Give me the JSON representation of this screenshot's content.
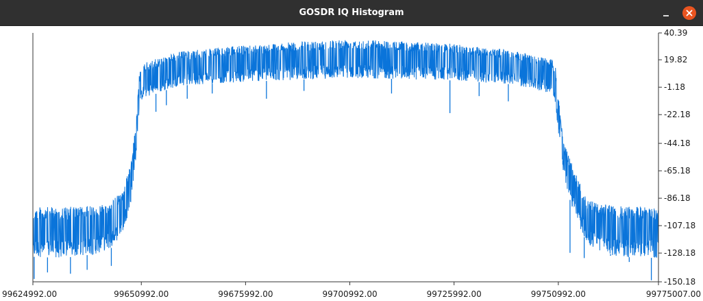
{
  "window": {
    "title": "GOSDR IQ Histogram",
    "minimize_icon": "minimize-icon",
    "close_icon": "close-icon",
    "close_color": "#e95420"
  },
  "chart_data": {
    "type": "line",
    "title": "",
    "xlabel": "",
    "ylabel": "",
    "series_color": "#0a74da",
    "xlim": [
      99624992,
      99775007
    ],
    "ylim": [
      -150.18,
      40.39
    ],
    "x_ticks": [
      "99624992.00",
      "99650992.00",
      "99675992.00",
      "99700992.00",
      "99725992.00",
      "99750992.00",
      "99775007.00"
    ],
    "x_tick_values": [
      99624992,
      99650992,
      99675992,
      99700992,
      99725992,
      99750992,
      99775007
    ],
    "y_ticks": [
      "40.39",
      "19.82",
      "-1.18",
      "-22.18",
      "-44.18",
      "-65.18",
      "-86.18",
      "-107.18",
      "-128.18",
      "-150.18"
    ],
    "y_tick_values": [
      40.39,
      19.82,
      -1.18,
      -22.18,
      -44.18,
      -65.18,
      -86.18,
      -107.18,
      -128.18,
      -150.18
    ],
    "envelope": {
      "x": [
        99624992,
        99632000,
        99640000,
        99644000,
        99646500,
        99648500,
        99649800,
        99650500,
        99651200,
        99660000,
        99675992,
        99700992,
        99725992,
        99740000,
        99749500,
        99750300,
        99751000,
        99752200,
        99754500,
        99758000,
        99764000,
        99775007
      ],
      "top": [
        -93,
        -93,
        -92,
        -88,
        -80,
        -60,
        -25,
        8,
        17,
        26,
        31,
        36,
        32,
        27,
        20,
        14,
        -8,
        -42,
        -62,
        -88,
        -92,
        -93
      ],
      "bottom": [
        -131,
        -132,
        -129,
        -124,
        -112,
        -92,
        -52,
        -20,
        -10,
        0,
        3,
        6,
        4,
        1,
        -6,
        -15,
        -35,
        -68,
        -96,
        -122,
        -131,
        -132
      ]
    },
    "spikes": [
      {
        "x": 99625300,
        "y": -148
      },
      {
        "x": 99628500,
        "y": -143
      },
      {
        "x": 99634000,
        "y": -144
      },
      {
        "x": 99638000,
        "y": -141
      },
      {
        "x": 99643800,
        "y": -138
      },
      {
        "x": 99654500,
        "y": -20
      },
      {
        "x": 99657000,
        "y": -15
      },
      {
        "x": 99662000,
        "y": -10
      },
      {
        "x": 99668000,
        "y": -6
      },
      {
        "x": 99681000,
        "y": -10
      },
      {
        "x": 99690000,
        "y": -4
      },
      {
        "x": 99711000,
        "y": -6
      },
      {
        "x": 99725000,
        "y": -21
      },
      {
        "x": 99732000,
        "y": -8
      },
      {
        "x": 99739000,
        "y": -12
      },
      {
        "x": 99753800,
        "y": -128
      },
      {
        "x": 99757200,
        "y": -132
      },
      {
        "x": 99763500,
        "y": -129
      },
      {
        "x": 99768000,
        "y": -135
      },
      {
        "x": 99773300,
        "y": -149
      }
    ]
  }
}
